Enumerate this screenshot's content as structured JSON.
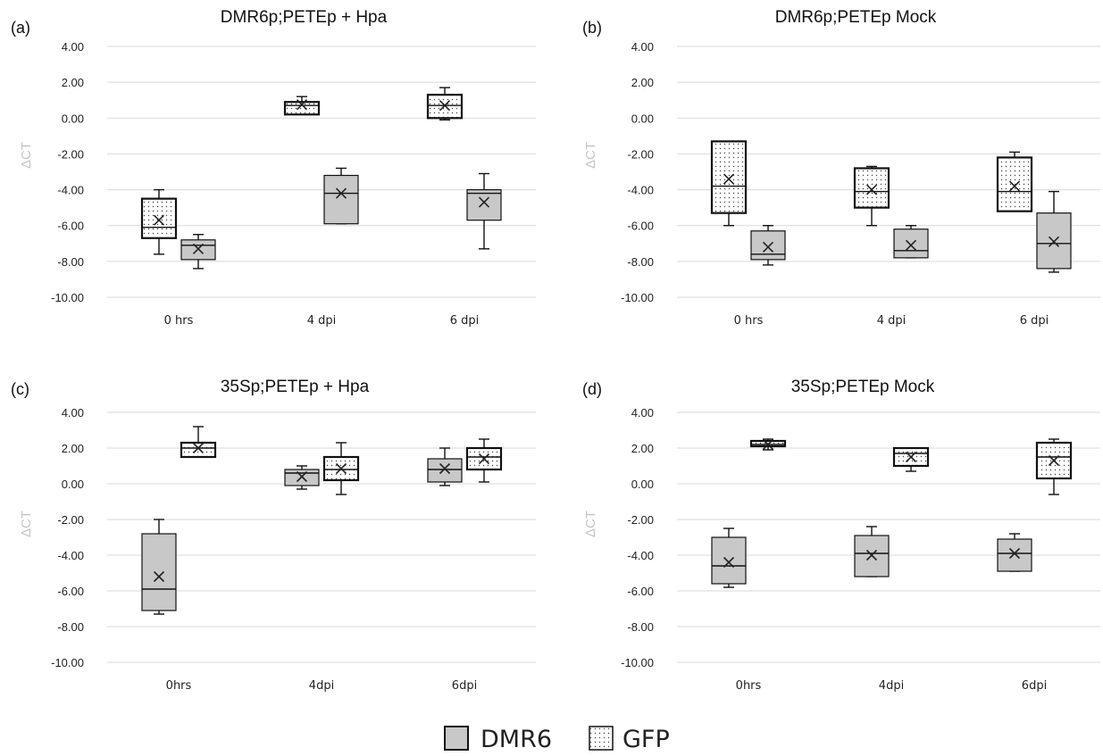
{
  "legend": {
    "items": [
      {
        "label": "DMR6",
        "fill": "#c8c8c8",
        "pattern": "none"
      },
      {
        "label": "GFP",
        "fill": "#ffffff",
        "pattern": "dots"
      }
    ]
  },
  "colors": {
    "dmr6_fill": "#c8c8c8",
    "gfp_fill": "#ffffff",
    "grid": "#d9d9d9",
    "box_stroke": "#111111"
  },
  "chart_data": [
    {
      "type": "box",
      "panel_label": "(a)",
      "title": "DMR6p;PETEp + Hpa",
      "ylabel": "ΔCT",
      "ylim": [
        -10,
        4
      ],
      "yticks": [
        "4.00",
        "2.00",
        "0.00",
        "-2.00",
        "-4.00",
        "-6.00",
        "-8.00",
        "-10.00"
      ],
      "categories": [
        "0 hrs",
        "4 dpi",
        "6 dpi"
      ],
      "series": [
        {
          "name": "GFP",
          "boxes": [
            {
              "min": -7.6,
              "q1": -6.7,
              "median": -6.1,
              "q3": -4.5,
              "max": -4.0,
              "mean": -5.7
            },
            {
              "min": 0.2,
              "q1": 0.2,
              "median": 0.7,
              "q3": 0.9,
              "max": 1.2,
              "mean": 0.75
            },
            {
              "min": -0.1,
              "q1": 0.0,
              "median": 0.7,
              "q3": 1.3,
              "max": 1.7,
              "mean": 0.7
            }
          ]
        },
        {
          "name": "DMR6",
          "boxes": [
            {
              "min": -8.4,
              "q1": -7.9,
              "median": -7.1,
              "q3": -6.8,
              "max": -6.5,
              "mean": -7.3
            },
            {
              "min": -5.9,
              "q1": -5.9,
              "median": -4.2,
              "q3": -3.2,
              "max": -2.8,
              "mean": -4.2
            },
            {
              "min": -7.3,
              "q1": -5.7,
              "median": -4.2,
              "q3": -4.0,
              "max": -3.1,
              "mean": -4.7
            }
          ]
        }
      ]
    },
    {
      "type": "box",
      "panel_label": "(b)",
      "title": "DMR6p;PETEp Mock",
      "ylabel": "ΔCT",
      "ylim": [
        -10,
        4
      ],
      "yticks": [
        "4.00",
        "2.00",
        "0.00",
        "-2.00",
        "-4.00",
        "-6.00",
        "-8.00",
        "-10.00"
      ],
      "categories": [
        "0 hrs",
        "4 dpi",
        "6 dpi"
      ],
      "series": [
        {
          "name": "GFP",
          "boxes": [
            {
              "min": -6.0,
              "q1": -5.3,
              "median": -3.8,
              "q3": -1.3,
              "max": -1.3,
              "mean": -3.4
            },
            {
              "min": -6.0,
              "q1": -5.0,
              "median": -4.1,
              "q3": -2.8,
              "max": -2.7,
              "mean": -4.0
            },
            {
              "min": -5.2,
              "q1": -5.2,
              "median": -4.1,
              "q3": -2.2,
              "max": -1.9,
              "mean": -3.8
            }
          ]
        },
        {
          "name": "DMR6",
          "boxes": [
            {
              "min": -8.2,
              "q1": -7.9,
              "median": -7.6,
              "q3": -6.3,
              "max": -6.0,
              "mean": -7.2
            },
            {
              "min": -7.8,
              "q1": -7.8,
              "median": -7.4,
              "q3": -6.2,
              "max": -6.0,
              "mean": -7.1
            },
            {
              "min": -8.6,
              "q1": -8.4,
              "median": -7.0,
              "q3": -5.3,
              "max": -4.1,
              "mean": -6.9
            }
          ]
        }
      ]
    },
    {
      "type": "box",
      "panel_label": "(c)",
      "title": "35Sp;PETEp + Hpa",
      "ylabel": "ΔCT",
      "ylim": [
        -10,
        4
      ],
      "yticks": [
        "4.00",
        "2.00",
        "0.00",
        "-2.00",
        "-4.00",
        "-6.00",
        "-8.00",
        "-10.00"
      ],
      "categories": [
        "0hrs",
        "4dpi",
        "6dpi"
      ],
      "series": [
        {
          "name": "DMR6",
          "boxes": [
            {
              "min": -7.3,
              "q1": -7.1,
              "median": -5.9,
              "q3": -2.8,
              "max": -2.0,
              "mean": -5.2
            },
            {
              "min": -0.3,
              "q1": -0.1,
              "median": 0.6,
              "q3": 0.8,
              "max": 1.0,
              "mean": 0.4
            },
            {
              "min": -0.1,
              "q1": 0.1,
              "median": 0.8,
              "q3": 1.4,
              "max": 2.0,
              "mean": 0.85
            }
          ]
        },
        {
          "name": "GFP",
          "boxes": [
            {
              "min": 1.5,
              "q1": 1.5,
              "median": 2.0,
              "q3": 2.3,
              "max": 3.2,
              "mean": 2.0
            },
            {
              "min": -0.6,
              "q1": 0.2,
              "median": 0.8,
              "q3": 1.5,
              "max": 2.3,
              "mean": 0.85
            },
            {
              "min": 0.1,
              "q1": 0.8,
              "median": 1.5,
              "q3": 2.0,
              "max": 2.5,
              "mean": 1.4
            }
          ]
        }
      ]
    },
    {
      "type": "box",
      "panel_label": "(d)",
      "title": "35Sp;PETEp Mock",
      "ylabel": "ΔCT",
      "ylim": [
        -10,
        4
      ],
      "yticks": [
        "4.00",
        "2.00",
        "0.00",
        "-2.00",
        "-4.00",
        "-6.00",
        "-8.00",
        "-10.00"
      ],
      "categories": [
        "0hrs",
        "4dpi",
        "6dpi"
      ],
      "series": [
        {
          "name": "DMR6",
          "boxes": [
            {
              "min": -5.8,
              "q1": -5.6,
              "median": -4.6,
              "q3": -3.0,
              "max": -2.5,
              "mean": -4.4
            },
            {
              "min": -5.2,
              "q1": -5.2,
              "median": -3.9,
              "q3": -2.9,
              "max": -2.4,
              "mean": -4.0
            },
            {
              "min": -4.9,
              "q1": -4.9,
              "median": -3.9,
              "q3": -3.1,
              "max": -2.8,
              "mean": -3.9
            }
          ]
        },
        {
          "name": "GFP",
          "boxes": [
            {
              "min": 1.9,
              "q1": 2.1,
              "median": 2.2,
              "q3": 2.4,
              "max": 2.5,
              "mean": 2.2
            },
            {
              "min": 0.7,
              "q1": 1.0,
              "median": 1.7,
              "q3": 2.0,
              "max": 2.0,
              "mean": 1.5
            },
            {
              "min": -0.6,
              "q1": 0.3,
              "median": 1.5,
              "q3": 2.3,
              "max": 2.5,
              "mean": 1.3
            }
          ]
        }
      ]
    }
  ]
}
